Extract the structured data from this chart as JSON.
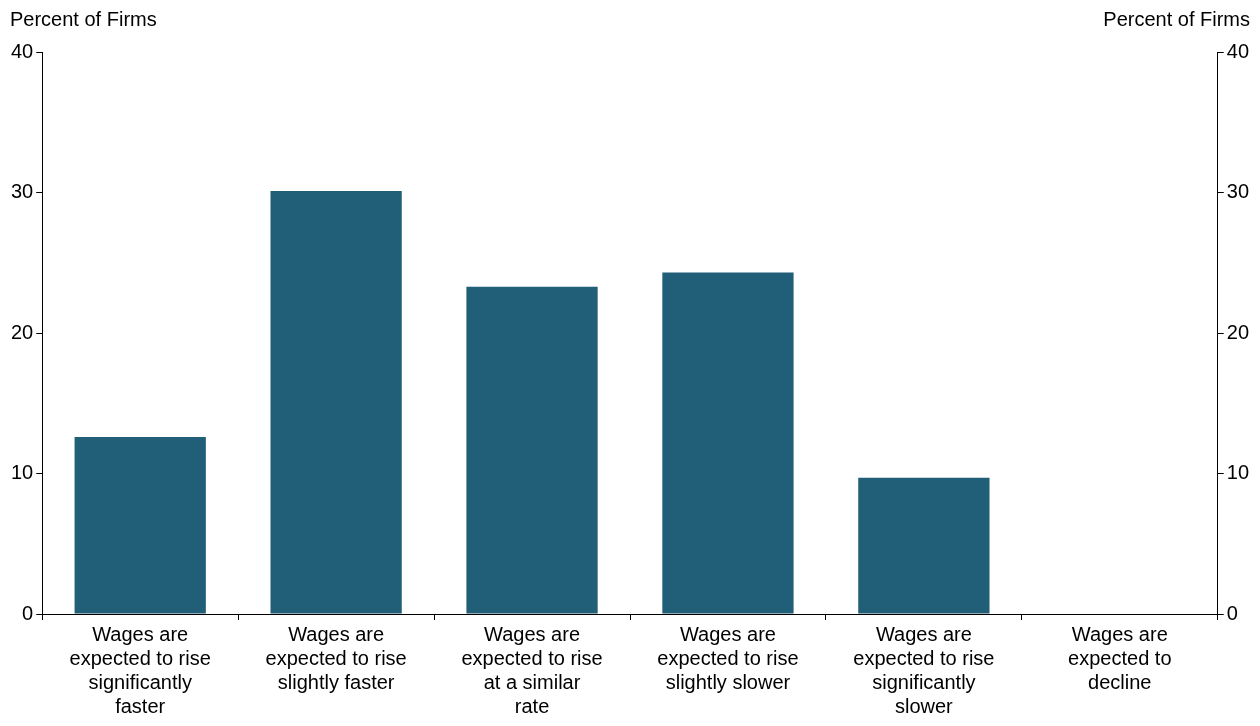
{
  "chart_data": {
    "type": "bar",
    "ylabel": "Percent of Firms",
    "y2label": "Percent of Firms",
    "categories": [
      "Wages are expected to rise significantly faster",
      "Wages are expected to rise slightly faster",
      "Wages are expected to rise at a similar rate",
      "Wages are expected to rise slightly slower",
      "Wages are expected to rise significantly slower",
      "Wages are expected to decline"
    ],
    "values": [
      12.6,
      30.1,
      23.3,
      24.3,
      9.7,
      0
    ],
    "color": "#215e78",
    "ylim": [
      0,
      40
    ],
    "yticks": [
      0,
      10,
      20,
      30,
      40
    ],
    "y2lim": [
      0,
      40
    ],
    "y2ticks": [
      0,
      10,
      20,
      30,
      40
    ],
    "grid": false,
    "legend": false
  }
}
